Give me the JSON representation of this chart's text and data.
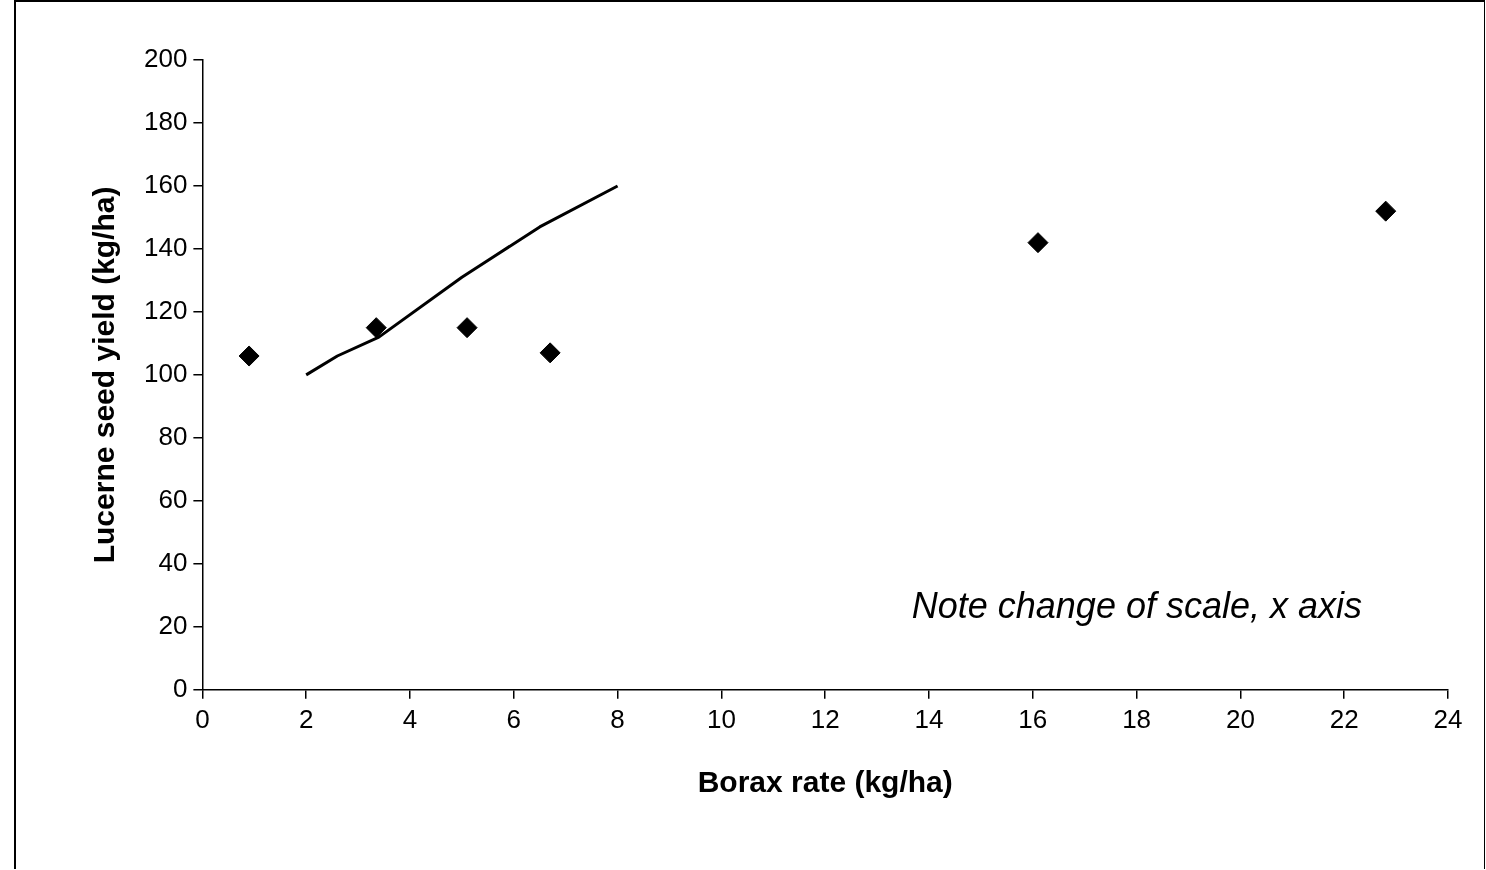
{
  "chart_data": {
    "type": "scatter",
    "xlabel": "Borax rate (kg/ha)",
    "ylabel": "Lucerne seed yield (kg/ha)",
    "series": [
      {
        "marker": "diamond",
        "color": "#000000",
        "x": [
          0.9,
          3.35,
          5.1,
          6.7,
          16.1,
          22.8
        ],
        "values": [
          106,
          115,
          115,
          107,
          142,
          152
        ]
      },
      {
        "type": "line",
        "color": "#000000",
        "x": [
          2,
          2.6,
          3.4,
          5,
          6.5,
          8
        ],
        "values": [
          100,
          106,
          112,
          131,
          147,
          160
        ]
      }
    ],
    "xlim": [
      0,
      24
    ],
    "xticks": [
      0,
      2,
      4,
      6,
      8,
      10,
      12,
      14,
      16,
      18,
      20,
      22,
      24
    ],
    "ylim": [
      0,
      200
    ],
    "yticks": [
      0,
      20,
      40,
      60,
      80,
      100,
      120,
      140,
      160,
      180,
      200
    ],
    "line_style": "solid",
    "annotations": [
      "Note change of scale, x axis"
    ]
  }
}
